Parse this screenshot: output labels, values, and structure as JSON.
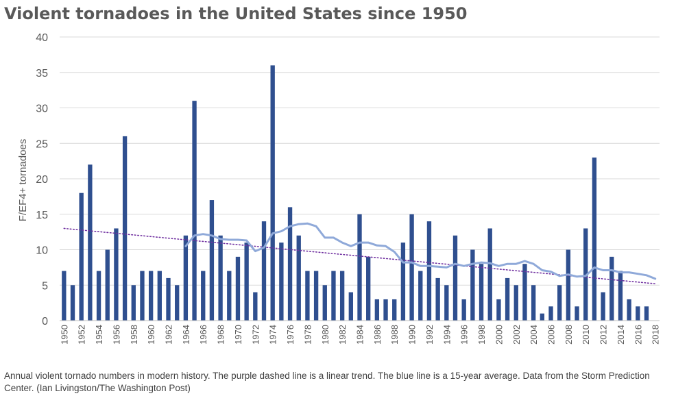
{
  "title": "Violent tornadoes in the United States since 1950",
  "caption": "Annual violent tornado numbers in modern history. The purple dashed line is a linear trend. The blue line is a 15-year average. Data from the Storm Prediction Center. (Ian Livingston/The Washington Post)",
  "chart_data": {
    "type": "bar",
    "ylabel": "F/EF4+ tornadoes",
    "xlabel": "",
    "ylim": [
      0,
      40
    ],
    "yticks": [
      0,
      5,
      10,
      15,
      20,
      25,
      30,
      35,
      40
    ],
    "grid": true,
    "categories": [
      1950,
      1951,
      1952,
      1953,
      1954,
      1955,
      1956,
      1957,
      1958,
      1959,
      1960,
      1961,
      1962,
      1963,
      1964,
      1965,
      1966,
      1967,
      1968,
      1969,
      1970,
      1971,
      1972,
      1973,
      1974,
      1975,
      1976,
      1977,
      1978,
      1979,
      1980,
      1981,
      1982,
      1983,
      1984,
      1985,
      1986,
      1987,
      1988,
      1989,
      1990,
      1991,
      1992,
      1993,
      1994,
      1995,
      1996,
      1997,
      1998,
      1999,
      2000,
      2001,
      2002,
      2003,
      2004,
      2005,
      2006,
      2007,
      2008,
      2009,
      2010,
      2011,
      2012,
      2013,
      2014,
      2015,
      2016,
      2017,
      2018
    ],
    "xtick_labels": [
      "1950",
      "1952",
      "1954",
      "1956",
      "1958",
      "1960",
      "1962",
      "1964",
      "1966",
      "1968",
      "1970",
      "1972",
      "1974",
      "1976",
      "1978",
      "1980",
      "1982",
      "1984",
      "1986",
      "1988",
      "1990",
      "1992",
      "1994",
      "1996",
      "1998",
      "2000",
      "2002",
      "2004",
      "2006",
      "2008",
      "2010",
      "2012",
      "2014",
      "2016",
      "2018"
    ],
    "values": [
      7,
      5,
      18,
      22,
      7,
      10,
      13,
      26,
      5,
      7,
      7,
      7,
      6,
      5,
      12,
      31,
      7,
      17,
      12,
      7,
      9,
      11,
      4,
      14,
      36,
      11,
      16,
      12,
      7,
      7,
      5,
      7,
      7,
      4,
      15,
      9,
      3,
      3,
      3,
      11,
      15,
      7,
      14,
      6,
      5,
      12,
      3,
      10,
      8,
      13,
      3,
      6,
      5,
      8,
      5,
      1,
      2,
      5,
      10,
      2,
      13,
      23,
      4,
      9,
      7,
      3,
      2,
      2,
      0
    ],
    "trend": {
      "x": [
        1950,
        2018
      ],
      "y": [
        13.0,
        5.2
      ]
    },
    "moving_average": {
      "x": [
        1964,
        1965,
        1966,
        1967,
        1968,
        1969,
        1970,
        1971,
        1972,
        1973,
        1974,
        1975,
        1976,
        1977,
        1978,
        1979,
        1980,
        1981,
        1982,
        1983,
        1984,
        1985,
        1986,
        1987,
        1988,
        1989,
        1990,
        1991,
        1992,
        1993,
        1994,
        1995,
        1996,
        1997,
        1998,
        1999,
        2000,
        2001,
        2002,
        2003,
        2004,
        2005,
        2006,
        2007,
        2008,
        2009,
        2010,
        2011,
        2012,
        2013,
        2014,
        2015,
        2016,
        2017,
        2018
      ],
      "y": [
        10.5,
        12.0,
        12.2,
        12.0,
        11.5,
        11.4,
        11.4,
        11.3,
        9.8,
        10.3,
        12.3,
        12.6,
        13.3,
        13.6,
        13.7,
        13.3,
        11.7,
        11.7,
        11.0,
        10.5,
        11.0,
        11.0,
        10.6,
        10.5,
        9.7,
        8.2,
        8.2,
        7.7,
        7.7,
        7.6,
        7.5,
        8.0,
        7.7,
        8.0,
        8.2,
        8.1,
        7.7,
        8.0,
        8.0,
        8.4,
        8.0,
        7.1,
        6.9,
        6.3,
        6.5,
        6.2,
        6.3,
        7.5,
        7.1,
        7.1,
        6.8,
        6.8,
        6.6,
        6.4,
        5.9
      ]
    },
    "colors": {
      "bars": "#2f4f8f",
      "trend": "#7030a0",
      "moving_average": "#8fa9d9",
      "grid": "#d9d9d9",
      "axis": "#bfbfbf"
    }
  }
}
